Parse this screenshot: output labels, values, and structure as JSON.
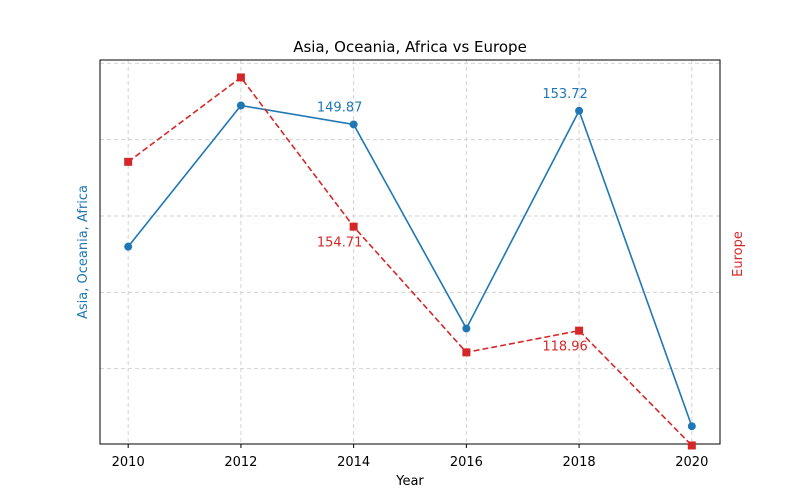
{
  "chart_data": {
    "type": "line",
    "title": "Asia, Oceania, Africa vs Europe",
    "xlabel": "Year",
    "x": [
      2010,
      2012,
      2014,
      2016,
      2018,
      2020
    ],
    "xticks": [
      "2010",
      "2012",
      "2014",
      "2016",
      "2018",
      "2020"
    ],
    "xlim": [
      2009.5,
      2020.5
    ],
    "grid": true,
    "series": [
      {
        "name": "Asia, Oceania, Africa",
        "axis": "left",
        "ylabel": "Asia, Oceania, Africa",
        "color": "#1f77b4",
        "marker": "circle",
        "linestyle": "solid",
        "ylim": [
          60,
          168
        ],
        "values": [
          115.5,
          155.2,
          149.87,
          92.5,
          153.72,
          65.0
        ],
        "annotations": [
          {
            "x": 2014,
            "text": "149.87"
          },
          {
            "x": 2018,
            "text": "153.72"
          }
        ]
      },
      {
        "name": "Europe",
        "axis": "right",
        "ylabel": "Europe",
        "color": "#d62728",
        "marker": "square",
        "linestyle": "dashed",
        "ylim": [
          80,
          212
        ],
        "values": [
          177.0,
          206.0,
          154.71,
          111.5,
          118.96,
          79.5
        ],
        "annotations": [
          {
            "x": 2014,
            "text": "154.71"
          },
          {
            "x": 2018,
            "text": "118.96"
          }
        ]
      }
    ]
  }
}
